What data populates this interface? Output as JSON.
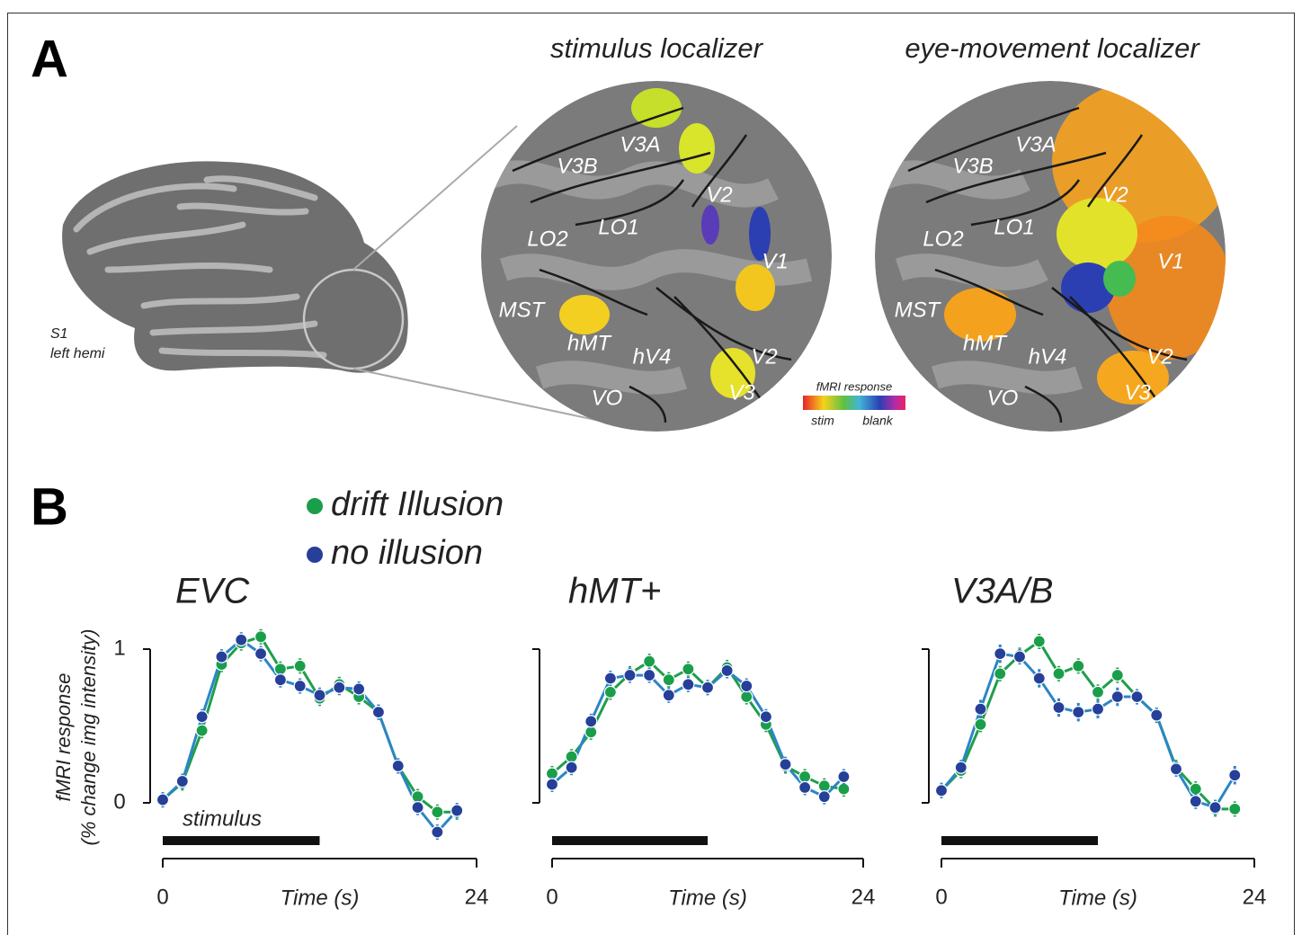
{
  "panel_a": {
    "label": "A",
    "brain_label": [
      "S1",
      "left hemi"
    ],
    "maps": [
      {
        "title": "stimulus localizer",
        "regions": [
          "V3A",
          "V3B",
          "V2",
          "LO1",
          "LO2",
          "V1",
          "MST",
          "hMT",
          "hV4",
          "V2",
          "VO",
          "V3"
        ]
      },
      {
        "title": "eye-movement localizer",
        "regions": [
          "V3A",
          "V3B",
          "V2",
          "LO1",
          "LO2",
          "V1",
          "MST",
          "hMT",
          "hV4",
          "V2",
          "VO",
          "V3"
        ]
      }
    ],
    "colorbar": {
      "title": "fMRI response",
      "low": "stim",
      "high": "blank"
    }
  },
  "panel_b": {
    "label": "B",
    "legend": [
      {
        "name": "drift Illusion",
        "color": "#1a9e4a"
      },
      {
        "name": "no illusion",
        "color": "#263f99"
      }
    ],
    "ylabel": [
      "fMRI response",
      "(% change img intensity)"
    ]
  },
  "chart_data": [
    {
      "type": "line",
      "title": "EVC",
      "xlabel": "Time (s)",
      "x": [
        0,
        1.5,
        3,
        4.5,
        6,
        7.5,
        9,
        10.5,
        12,
        13.5,
        15,
        16.5,
        18,
        19.5,
        21,
        22.5
      ],
      "xlim": [
        0,
        24
      ],
      "xticks": [
        0,
        24
      ],
      "ylim": [
        -0.2,
        1.1
      ],
      "yticks": [
        0,
        1
      ],
      "show_ytick_labels": true,
      "stimulus": {
        "label": "stimulus",
        "start": 0,
        "end": 12
      },
      "series": [
        {
          "color": "#1a9e4a",
          "line_color": "#1f9e4c",
          "values": [
            0.02,
            0.13,
            0.47,
            0.9,
            1.04,
            1.08,
            0.87,
            0.89,
            0.68,
            0.77,
            0.69,
            0.59,
            0.24,
            0.04,
            -0.06,
            -0.06
          ],
          "errors": [
            0.05,
            0.05,
            0.05,
            0.05,
            0.05,
            0.05,
            0.05,
            0.05,
            0.05,
            0.05,
            0.05,
            0.05,
            0.05,
            0.05,
            0.05,
            0.05
          ]
        },
        {
          "color": "#263f99",
          "line_color": "#2b86c5",
          "values": [
            0.02,
            0.14,
            0.56,
            0.95,
            1.06,
            0.97,
            0.8,
            0.76,
            0.7,
            0.75,
            0.74,
            0.59,
            0.24,
            -0.03,
            -0.19,
            -0.05
          ],
          "errors": [
            0.05,
            0.05,
            0.05,
            0.05,
            0.05,
            0.05,
            0.05,
            0.05,
            0.05,
            0.05,
            0.05,
            0.05,
            0.05,
            0.05,
            0.05,
            0.05
          ]
        }
      ]
    },
    {
      "type": "line",
      "title": "hMT+",
      "xlabel": "Time (s)",
      "x": [
        0,
        1.5,
        3,
        4.5,
        6,
        7.5,
        9,
        10.5,
        12,
        13.5,
        15,
        16.5,
        18,
        19.5,
        21,
        22.5
      ],
      "xlim": [
        0,
        24
      ],
      "xticks": [
        0,
        24
      ],
      "ylim": [
        -0.2,
        1.1
      ],
      "yticks": [
        0,
        1
      ],
      "show_ytick_labels": false,
      "stimulus": {
        "start": 0,
        "end": 12
      },
      "series": [
        {
          "color": "#1a9e4a",
          "line_color": "#1f9e4c",
          "values": [
            0.19,
            0.3,
            0.46,
            0.72,
            0.84,
            0.92,
            0.8,
            0.87,
            0.75,
            0.88,
            0.69,
            0.51,
            0.24,
            0.17,
            0.11,
            0.09
          ],
          "errors": [
            0.05,
            0.05,
            0.05,
            0.05,
            0.05,
            0.05,
            0.05,
            0.05,
            0.05,
            0.05,
            0.05,
            0.05,
            0.05,
            0.05,
            0.05,
            0.05
          ]
        },
        {
          "color": "#263f99",
          "line_color": "#2b86c5",
          "values": [
            0.12,
            0.23,
            0.53,
            0.81,
            0.83,
            0.83,
            0.7,
            0.77,
            0.75,
            0.86,
            0.76,
            0.56,
            0.25,
            0.1,
            0.04,
            0.17
          ],
          "errors": [
            0.05,
            0.05,
            0.05,
            0.05,
            0.05,
            0.05,
            0.05,
            0.05,
            0.05,
            0.05,
            0.05,
            0.05,
            0.05,
            0.05,
            0.05,
            0.05
          ]
        }
      ]
    },
    {
      "type": "line",
      "title": "V3A/B",
      "xlabel": "Time (s)",
      "x": [
        0,
        1.5,
        3,
        4.5,
        6,
        7.5,
        9,
        10.5,
        12,
        13.5,
        15,
        16.5,
        18,
        19.5,
        21,
        22.5
      ],
      "xlim": [
        0,
        24
      ],
      "xticks": [
        0,
        24
      ],
      "ylim": [
        -0.2,
        1.1
      ],
      "yticks": [
        0,
        1
      ],
      "show_ytick_labels": false,
      "stimulus": {
        "start": 0,
        "end": 12
      },
      "series": [
        {
          "color": "#1a9e4a",
          "line_color": "#1f9e4c",
          "values": [
            0.08,
            0.21,
            0.51,
            0.84,
            0.96,
            1.05,
            0.84,
            0.89,
            0.72,
            0.83,
            0.69,
            0.57,
            0.23,
            0.09,
            -0.04,
            -0.04
          ],
          "errors": [
            0.05,
            0.05,
            0.05,
            0.05,
            0.05,
            0.05,
            0.05,
            0.05,
            0.05,
            0.05,
            0.05,
            0.05,
            0.05,
            0.05,
            0.05,
            0.05
          ]
        },
        {
          "color": "#263f99",
          "line_color": "#2b86c5",
          "values": [
            0.08,
            0.23,
            0.61,
            0.97,
            0.95,
            0.81,
            0.62,
            0.59,
            0.61,
            0.69,
            0.69,
            0.57,
            0.22,
            0.01,
            -0.03,
            0.18
          ],
          "errors": [
            0.05,
            0.05,
            0.06,
            0.06,
            0.05,
            0.06,
            0.06,
            0.06,
            0.06,
            0.06,
            0.05,
            0.05,
            0.05,
            0.05,
            0.05,
            0.06
          ]
        }
      ]
    }
  ]
}
